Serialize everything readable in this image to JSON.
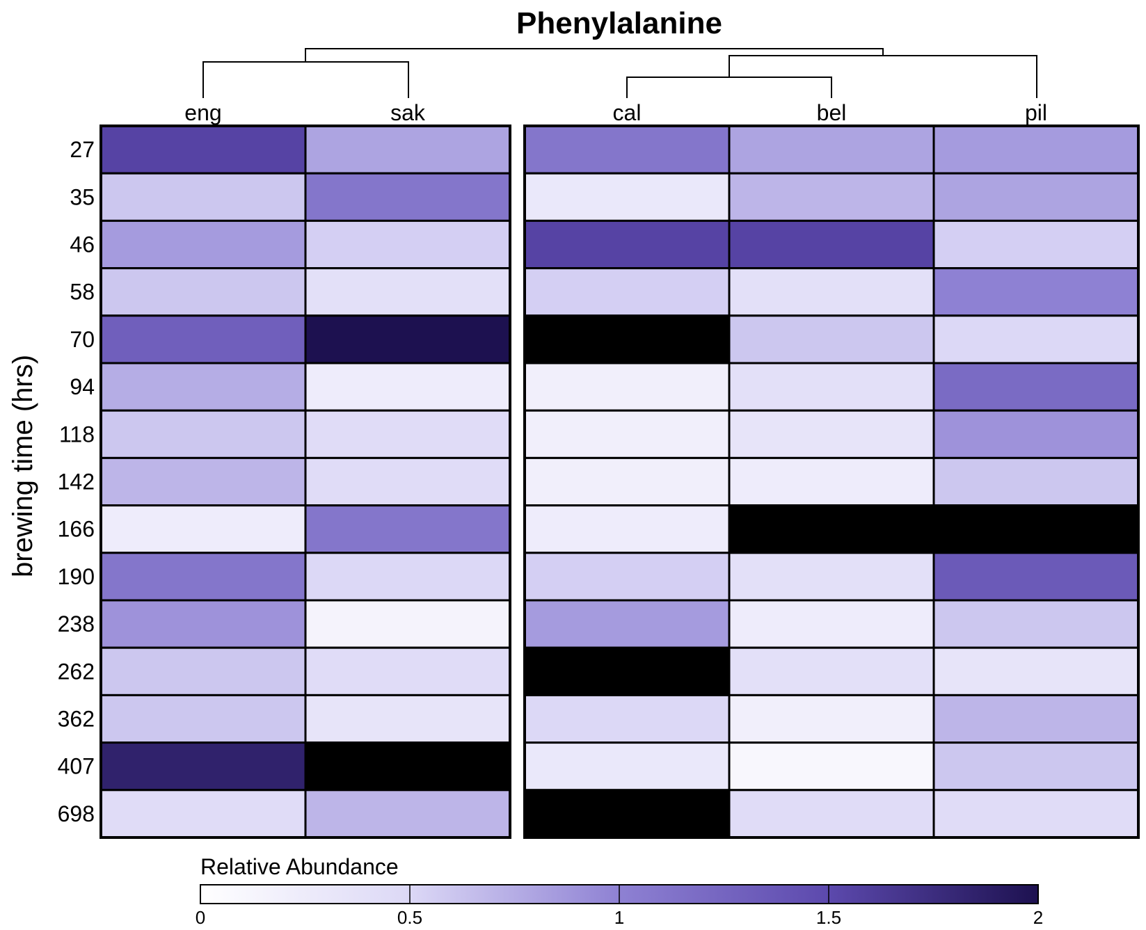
{
  "chart_data": {
    "type": "heatmap",
    "title": "Phenylalanine",
    "ylabel": "brewing time (hrs)",
    "columns": [
      "eng",
      "sak",
      "cal",
      "bel",
      "pil"
    ],
    "column_groups": [
      [
        "eng",
        "sak"
      ],
      [
        "cal",
        "bel",
        "pil"
      ]
    ],
    "rows": [
      "27",
      "35",
      "46",
      "58",
      "70",
      "94",
      "118",
      "142",
      "166",
      "190",
      "238",
      "262",
      "362",
      "407",
      "698"
    ],
    "values": [
      [
        1.55,
        0.8,
        1.1,
        0.8,
        0.85
      ],
      [
        0.6,
        1.1,
        0.3,
        0.7,
        0.8
      ],
      [
        0.85,
        0.55,
        1.55,
        1.55,
        0.55
      ],
      [
        0.6,
        0.4,
        0.55,
        0.4,
        1.0
      ],
      [
        1.3,
        2.0,
        null,
        0.6,
        0.5
      ],
      [
        0.75,
        0.25,
        0.2,
        0.4,
        1.2
      ],
      [
        0.6,
        0.45,
        0.2,
        0.35,
        0.9
      ],
      [
        0.7,
        0.45,
        0.2,
        0.25,
        0.6
      ],
      [
        0.25,
        1.1,
        0.25,
        null,
        null
      ],
      [
        1.1,
        0.5,
        0.55,
        0.4,
        1.35
      ],
      [
        0.9,
        0.15,
        0.85,
        0.25,
        0.6
      ],
      [
        0.6,
        0.45,
        null,
        0.4,
        0.35
      ],
      [
        0.6,
        0.35,
        0.5,
        0.2,
        0.7
      ],
      [
        1.85,
        null,
        0.3,
        0.1,
        0.6
      ],
      [
        0.45,
        0.7,
        null,
        0.45,
        0.45
      ]
    ],
    "missing_color": "#000000",
    "colorbar": {
      "title": "Relative Abundance",
      "range": [
        0,
        2
      ],
      "ticks": [
        "0",
        "0.5",
        "1",
        "1.5",
        "2"
      ],
      "tick_values": [
        0,
        0.5,
        1,
        1.5,
        2
      ],
      "colors": [
        "#ffffff",
        "#dcd8f6",
        "#8e81d3",
        "#5c49ad",
        "#1d1150"
      ]
    }
  }
}
